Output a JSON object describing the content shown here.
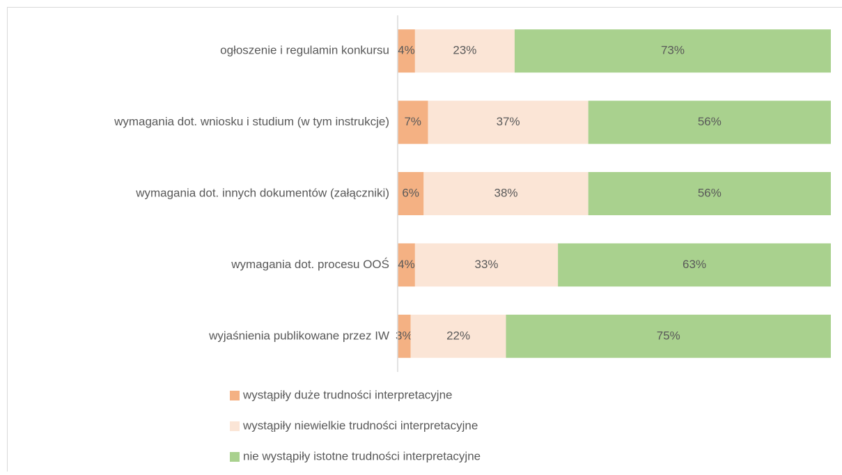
{
  "chart_data": {
    "type": "stacked_barh",
    "categories": [
      "ogłoszenie i regulamin konkursu",
      "wymagania dot. wniosku i studium (w tym instrukcje)",
      "wymagania dot. innych dokumentów (załączniki)",
      "wymagania dot. procesu OOŚ",
      "wyjaśnienia publikowane przez IW"
    ],
    "series": [
      {
        "name": "wystąpiły duże trudności interpretacyjne",
        "color": "#f4b183",
        "values": [
          4,
          7,
          6,
          4,
          3
        ],
        "value_labels": [
          "4%",
          "7%",
          "6%",
          "4%",
          "3%"
        ]
      },
      {
        "name": "wystąpiły niewielkie trudności interpretacyjne",
        "color": "#fbe5d6",
        "values": [
          23,
          37,
          38,
          33,
          22
        ],
        "value_labels": [
          "23%",
          "37%",
          "38%",
          "33%",
          "22%"
        ]
      },
      {
        "name": "nie wystąpiły istotne trudności interpretacyjne",
        "color": "#a9d18e",
        "values": [
          73,
          56,
          56,
          63,
          75
        ],
        "value_labels": [
          "73%",
          "56%",
          "56%",
          "63%",
          "75%"
        ]
      }
    ],
    "xlim": [
      0,
      100
    ],
    "legend": "bottom"
  }
}
